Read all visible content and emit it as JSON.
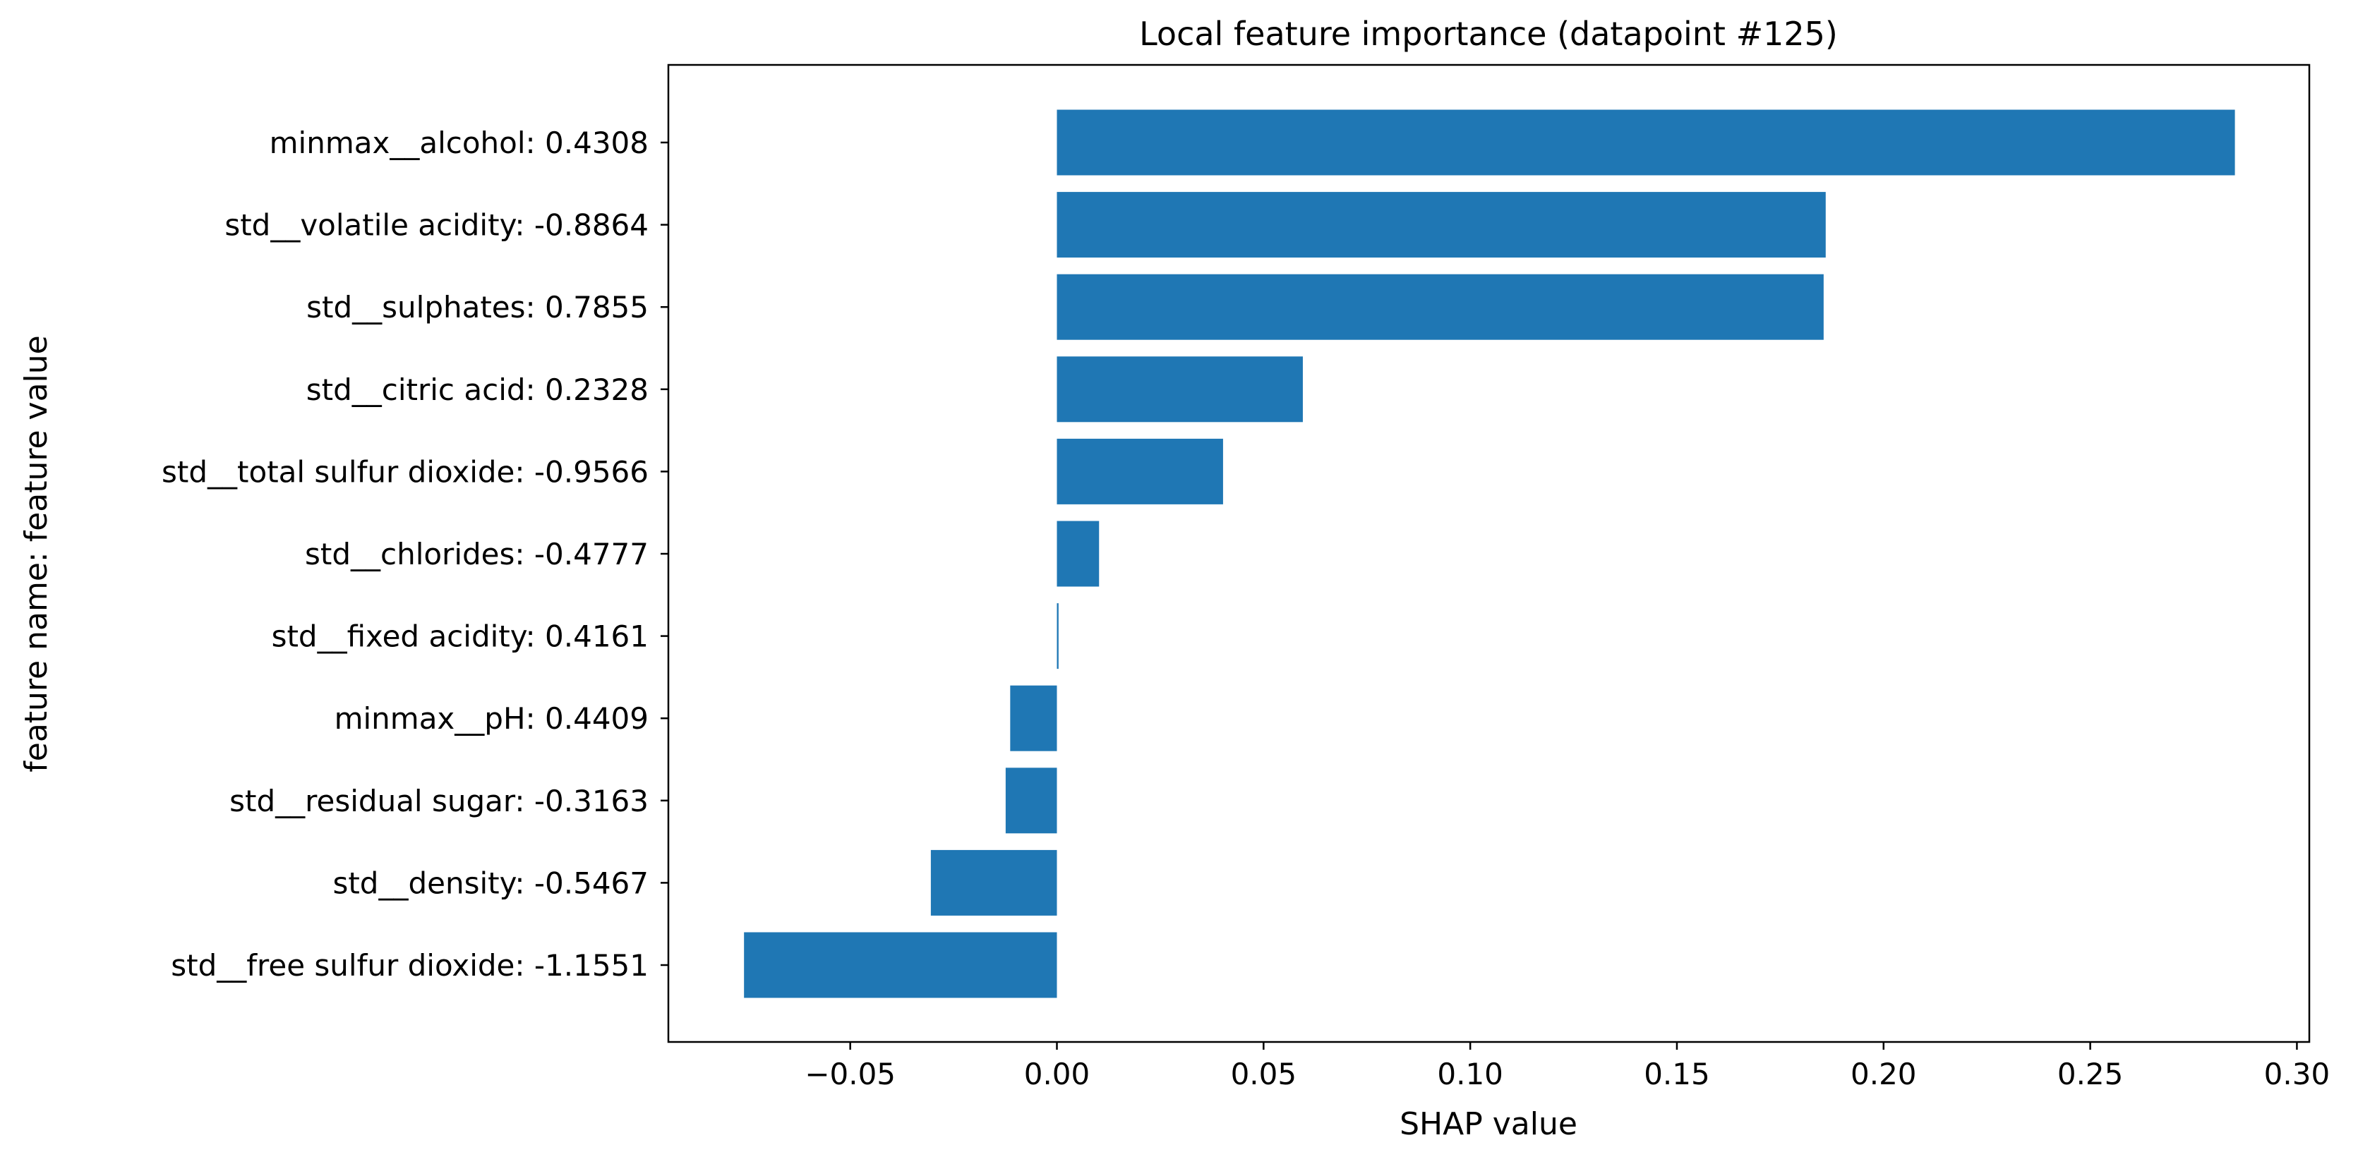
{
  "chart_data": {
    "type": "bar",
    "orientation": "horizontal",
    "title": "Local feature importance (datapoint #125)",
    "xlabel": "SHAP value",
    "ylabel": "feature name: feature value",
    "xlim": [
      -0.094,
      0.303
    ],
    "xticks": [
      -0.05,
      0.0,
      0.05,
      0.1,
      0.15,
      0.2,
      0.25,
      0.3
    ],
    "xtick_labels": [
      "−0.05",
      "0.00",
      "0.05",
      "0.10",
      "0.15",
      "0.20",
      "0.25",
      "0.30"
    ],
    "grid": false,
    "bar_color": "#1f77b4",
    "categories": [
      "minmax__alcohol: 0.4308",
      "std__volatile acidity: -0.8864",
      "std__sulphates: 0.7855",
      "std__citric acid: 0.2328",
      "std__total sulfur dioxide: -0.9566",
      "std__chlorides: -0.4777",
      "std__fixed acidity: 0.4161",
      "minmax__pH: 0.4409",
      "std__residual sugar: -0.3163",
      "std__density: -0.5467",
      "std__free sulfur dioxide: -1.1551"
    ],
    "values": [
      0.285,
      0.186,
      0.1855,
      0.0595,
      0.0402,
      0.0102,
      0.0004,
      -0.0113,
      -0.0124,
      -0.0305,
      -0.0757
    ]
  }
}
